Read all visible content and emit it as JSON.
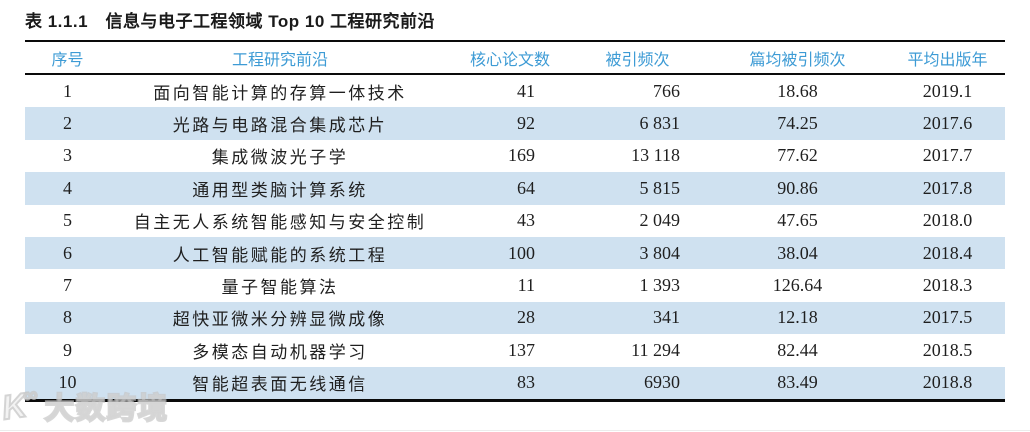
{
  "table": {
    "title": "表 1.1.1　信息与电子工程领域 Top 10 工程研究前沿",
    "columns": [
      "序号",
      "工程研究前沿",
      "核心论文数",
      "被引频次",
      "篇均被引频次",
      "平均出版年"
    ],
    "rows": [
      [
        "1",
        "面向智能计算的存算一体技术",
        "41",
        "766",
        "18.68",
        "2019.1"
      ],
      [
        "2",
        "光路与电路混合集成芯片",
        "92",
        "6 831",
        "74.25",
        "2017.6"
      ],
      [
        "3",
        "集成微波光子学",
        "169",
        "13 118",
        "77.62",
        "2017.7"
      ],
      [
        "4",
        "通用型类脑计算系统",
        "64",
        "5 815",
        "90.86",
        "2017.8"
      ],
      [
        "5",
        "自主无人系统智能感知与安全控制",
        "43",
        "2 049",
        "47.65",
        "2018.0"
      ],
      [
        "6",
        "人工智能赋能的系统工程",
        "100",
        "3 804",
        "38.04",
        "2018.4"
      ],
      [
        "7",
        "量子智能算法",
        "11",
        "1 393",
        "126.64",
        "2018.3"
      ],
      [
        "8",
        "超快亚微米分辨显微成像",
        "28",
        "341",
        "12.18",
        "2017.5"
      ],
      [
        "9",
        "多模态自动机器学习",
        "137",
        "11 294",
        "82.44",
        "2018.5"
      ],
      [
        "10",
        "智能超表面无线通信",
        "83",
        "6930",
        "83.49",
        "2018.8"
      ]
    ]
  },
  "watermark": {
    "logo_k": "K",
    "logo_inf": "∞",
    "text": "大数跨境"
  },
  "colors": {
    "header_text": "#3d9bd5",
    "band": "#cfe1f0",
    "rule": "#0a0a0a",
    "watermark": "#c6c6c6"
  }
}
